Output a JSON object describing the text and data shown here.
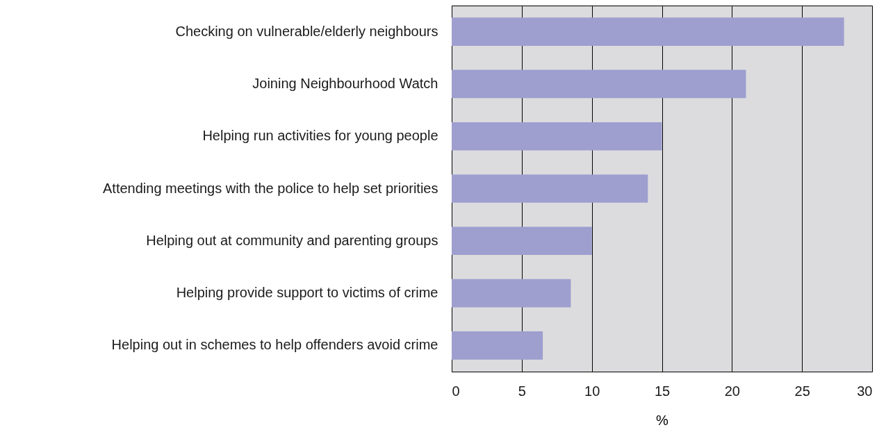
{
  "chart_data": {
    "type": "bar",
    "orientation": "horizontal",
    "xlabel": "%",
    "categories": [
      "Checking on vulnerable/elderly neighbours",
      "Joining Neighbourhood Watch",
      "Helping run activities for young people",
      "Attending meetings with the police to help set priorities",
      "Helping out at community and parenting groups",
      "Helping provide support to victims of crime",
      "Helping out in schemes to help offenders avoid crime"
    ],
    "values": [
      28,
      21,
      15,
      14,
      10,
      8.5,
      6.5
    ],
    "color": "#9e9fcf",
    "xlim": [
      0,
      30
    ],
    "xticks": [
      0,
      5,
      10,
      15,
      20,
      25,
      30
    ],
    "grid": "x"
  }
}
